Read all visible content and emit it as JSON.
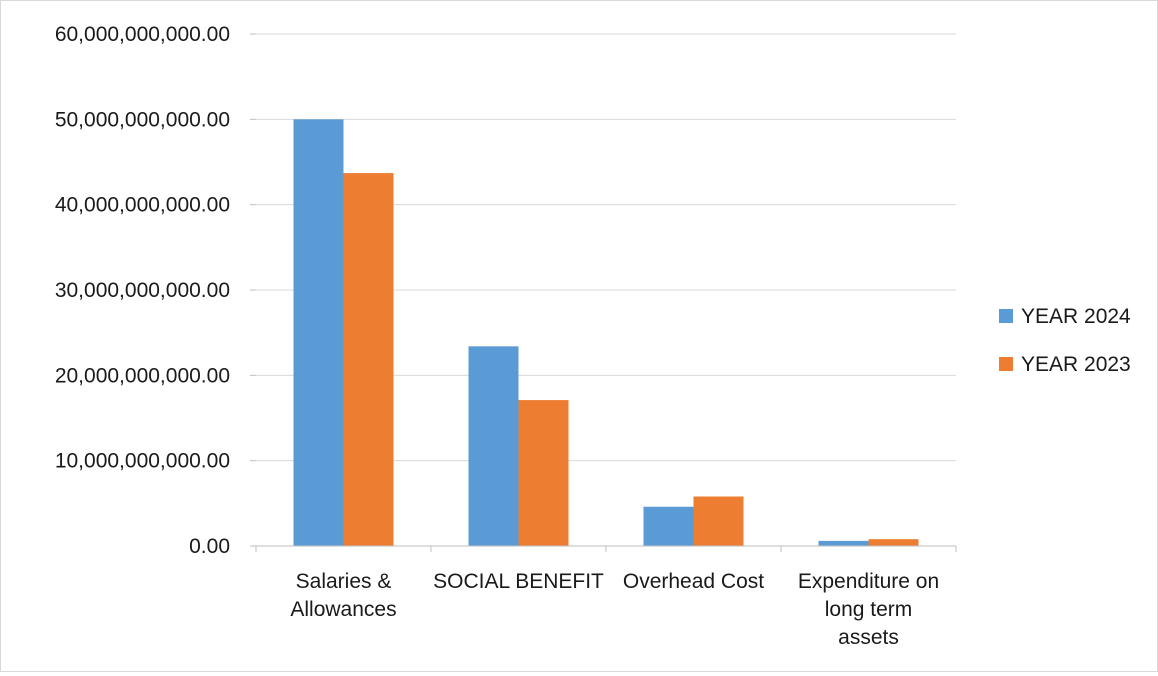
{
  "chart_data": {
    "type": "bar",
    "categories": [
      [
        "Salaries &",
        "Allowances"
      ],
      [
        "SOCIAL BENEFIT"
      ],
      [
        "Overhead Cost"
      ],
      [
        "Expenditure on",
        "long term",
        "assets"
      ]
    ],
    "series": [
      {
        "name": "YEAR 2024",
        "color": "#5b9bd5",
        "values": [
          50000000000,
          23400000000,
          4600000000,
          600000000
        ]
      },
      {
        "name": "YEAR 2023",
        "color": "#ed7d31",
        "values": [
          43700000000,
          17100000000,
          5800000000,
          800000000
        ]
      }
    ],
    "ylim": [
      0,
      60000000000
    ],
    "y_ticks": [
      {
        "value": 0,
        "label": "0.00"
      },
      {
        "value": 10000000000,
        "label": "10,000,000,000.00"
      },
      {
        "value": 20000000000,
        "label": "20,000,000,000.00"
      },
      {
        "value": 30000000000,
        "label": "30,000,000,000.00"
      },
      {
        "value": 40000000000,
        "label": "40,000,000,000.00"
      },
      {
        "value": 50000000000,
        "label": "50,000,000,000.00"
      },
      {
        "value": 60000000000,
        "label": "60,000,000,000.00"
      }
    ],
    "grid": true,
    "legend_position": "right"
  }
}
